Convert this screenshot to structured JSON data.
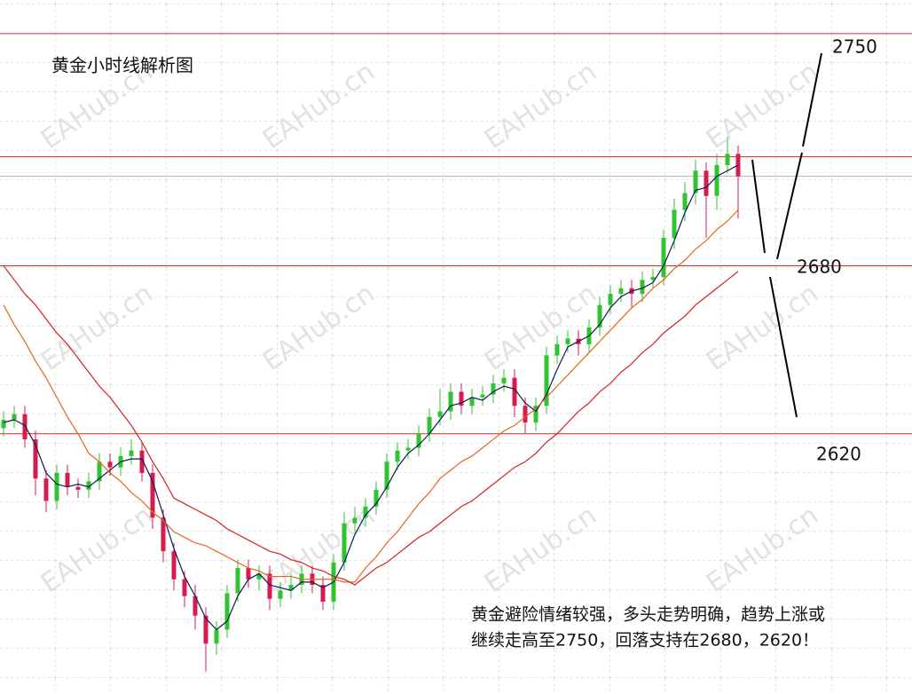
{
  "chart_data": {
    "type": "candlestick",
    "title": "黄金小时线解析图",
    "note": [
      "黄金避险情绪较强，多头走势明确，趋势上涨或",
      "继续走高至2750，回落支持在2680，2620！"
    ],
    "watermark": "EAHub.cn",
    "price_labels": [
      2750,
      2680,
      2620
    ],
    "levels": [
      2763,
      2719,
      2680,
      2620
    ],
    "level_color": "#e02424",
    "current_price": 2712,
    "up_color": "#2fc42f",
    "down_color": "#d81b4f",
    "ylim": [
      2527,
      2775
    ],
    "open": [
      2622,
      2625,
      2627,
      2618,
      2604,
      2596,
      2606,
      2601,
      2600,
      2603,
      2610,
      2608,
      2612,
      2614,
      2606,
      2590,
      2578,
      2568,
      2562,
      2555,
      2545,
      2550,
      2563,
      2572,
      2568,
      2570,
      2561,
      2564,
      2566,
      2570,
      2566,
      2560,
      2574,
      2588,
      2590,
      2594,
      2600,
      2610,
      2614,
      2615,
      2620,
      2626,
      2628,
      2635,
      2630,
      2633,
      2634,
      2638,
      2640,
      2630,
      2624,
      2630,
      2648,
      2652,
      2654,
      2652,
      2658,
      2666,
      2670,
      2672,
      2670,
      2675,
      2676,
      2690,
      2700,
      2706,
      2714,
      2705,
      2716,
      2720
    ],
    "high": [
      2628,
      2630,
      2630,
      2621,
      2607,
      2609,
      2609,
      2604,
      2606,
      2613,
      2613,
      2615,
      2618,
      2617,
      2609,
      2593,
      2581,
      2571,
      2566,
      2558,
      2553,
      2566,
      2575,
      2575,
      2573,
      2573,
      2567,
      2570,
      2573,
      2573,
      2569,
      2577,
      2592,
      2594,
      2597,
      2603,
      2613,
      2617,
      2618,
      2623,
      2629,
      2636,
      2638,
      2638,
      2636,
      2637,
      2641,
      2643,
      2643,
      2633,
      2633,
      2651,
      2655,
      2657,
      2657,
      2661,
      2669,
      2673,
      2675,
      2675,
      2678,
      2679,
      2693,
      2704,
      2710,
      2718,
      2717,
      2720,
      2726,
      2723
    ],
    "low": [
      2619,
      2622,
      2615,
      2598,
      2592,
      2593,
      2598,
      2597,
      2597,
      2600,
      2605,
      2605,
      2609,
      2603,
      2586,
      2574,
      2564,
      2558,
      2550,
      2535,
      2541,
      2547,
      2560,
      2565,
      2564,
      2557,
      2558,
      2561,
      2563,
      2563,
      2557,
      2557,
      2571,
      2585,
      2587,
      2591,
      2597,
      2607,
      2611,
      2612,
      2617,
      2623,
      2625,
      2627,
      2627,
      2630,
      2631,
      2635,
      2626,
      2620,
      2621,
      2627,
      2645,
      2649,
      2648,
      2649,
      2655,
      2663,
      2667,
      2665,
      2667,
      2672,
      2673,
      2686,
      2696,
      2702,
      2690,
      2700,
      2713,
      2697
    ],
    "close": [
      2625,
      2627,
      2618,
      2604,
      2596,
      2606,
      2601,
      2600,
      2603,
      2610,
      2608,
      2612,
      2614,
      2606,
      2590,
      2578,
      2568,
      2562,
      2555,
      2545,
      2550,
      2563,
      2572,
      2568,
      2570,
      2561,
      2564,
      2566,
      2570,
      2566,
      2560,
      2574,
      2588,
      2590,
      2594,
      2600,
      2610,
      2614,
      2615,
      2620,
      2626,
      2628,
      2635,
      2630,
      2633,
      2634,
      2638,
      2640,
      2630,
      2624,
      2630,
      2648,
      2652,
      2654,
      2652,
      2658,
      2666,
      2670,
      2672,
      2670,
      2675,
      2676,
      2690,
      2700,
      2706,
      2714,
      2705,
      2716,
      2720,
      2712
    ],
    "series": [
      {
        "color": "#0b1a5a",
        "values": [
          2624,
          2625,
          2623,
          2616,
          2606,
          2602,
          2601,
          2602,
          2601,
          2604,
          2607,
          2610,
          2611,
          2611,
          2603,
          2591,
          2579,
          2569,
          2562,
          2554,
          2550,
          2553,
          2562,
          2568,
          2570,
          2566,
          2565,
          2564,
          2567,
          2567,
          2565,
          2567,
          2574,
          2584,
          2591,
          2595,
          2601,
          2608,
          2613,
          2616,
          2620,
          2625,
          2630,
          2631,
          2633,
          2632,
          2635,
          2637,
          2636,
          2631,
          2628,
          2634,
          2643,
          2651,
          2653,
          2655,
          2659,
          2665,
          2669,
          2671,
          2672,
          2674,
          2680,
          2689,
          2699,
          2707,
          2708,
          2712,
          2714,
          2716
        ]
      },
      {
        "color": "#e8641c",
        "values": [
          2666,
          2659,
          2653,
          2646,
          2640,
          2633,
          2626,
          2620,
          2613,
          2610,
          2606,
          2603,
          2599,
          2596,
          2592,
          2589,
          2585,
          2583,
          2581,
          2580,
          2578,
          2576,
          2574,
          2572,
          2571,
          2569,
          2569,
          2569,
          2568,
          2568,
          2568,
          2568,
          2567,
          2567,
          2572,
          2576,
          2581,
          2585,
          2590,
          2595,
          2599,
          2604,
          2607,
          2610,
          2612,
          2615,
          2618,
          2621,
          2623,
          2626,
          2629,
          2633,
          2637,
          2641,
          2645,
          2649,
          2653,
          2657,
          2661,
          2665,
          2668,
          2672,
          2675,
          2679,
          2682,
          2686,
          2689,
          2693,
          2696,
          2700
        ]
      },
      {
        "color": "#d42020",
        "values": [
          2680,
          2675,
          2670,
          2666,
          2661,
          2656,
          2652,
          2647,
          2642,
          2637,
          2633,
          2628,
          2623,
          2617,
          2610,
          2604,
          2597,
          2595,
          2593,
          2591,
          2589,
          2586,
          2584,
          2582,
          2580,
          2578,
          2577,
          2575,
          2574,
          2572,
          2571,
          2569,
          2568,
          2566,
          2569,
          2572,
          2574,
          2577,
          2580,
          2583,
          2585,
          2588,
          2591,
          2594,
          2596,
          2599,
          2602,
          2605,
          2608,
          2610,
          2613,
          2617,
          2620,
          2624,
          2628,
          2631,
          2635,
          2638,
          2642,
          2645,
          2649,
          2652,
          2656,
          2659,
          2662,
          2666,
          2669,
          2672,
          2675,
          2678
        ]
      }
    ]
  }
}
